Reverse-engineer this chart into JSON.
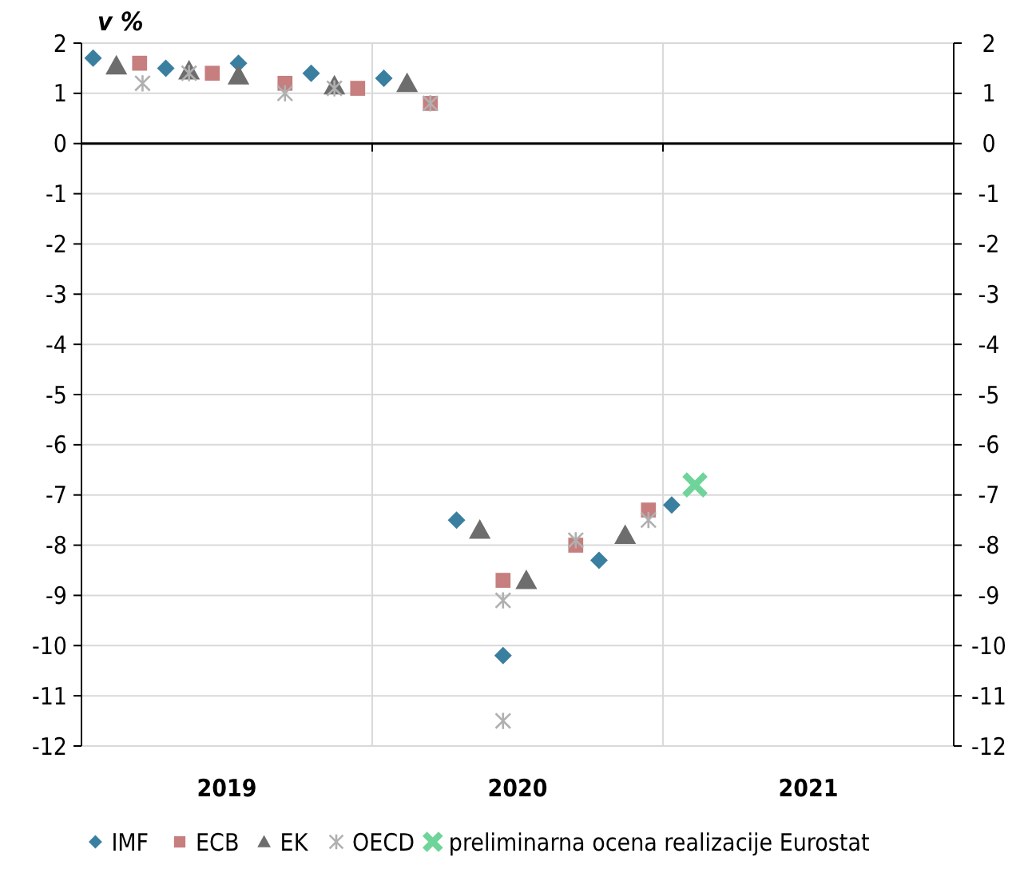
{
  "chart_data": {
    "type": "scatter",
    "ylabel": "v %",
    "xlim": [
      2019,
      2022
    ],
    "ylim": [
      -12,
      2
    ],
    "y2lim": [
      -12,
      2
    ],
    "xticks": [
      {
        "value": 2019,
        "label": null
      },
      {
        "value": 2019.5,
        "label": "2019"
      },
      {
        "value": 2020,
        "label": null
      },
      {
        "value": 2020.5,
        "label": "2020"
      },
      {
        "value": 2021,
        "label": null
      },
      {
        "value": 2021.5,
        "label": "2021"
      },
      {
        "value": 2022,
        "label": null
      }
    ],
    "yticks": [
      -12,
      -11,
      -10,
      -9,
      -8,
      -7,
      -6,
      -5,
      -4,
      -3,
      -2,
      -1,
      0,
      1,
      2
    ],
    "y2ticks": [
      -12,
      -11,
      -10,
      -9,
      -8,
      -7,
      -6,
      -5,
      -4,
      -3,
      -2,
      -1,
      0,
      1,
      2
    ],
    "grid": true,
    "legend": "bottom",
    "series": [
      {
        "name": "IMF",
        "color": "#3a7fa0",
        "marker": "diamond",
        "x": [
          2019.04,
          2019.29,
          2019.54,
          2019.79,
          2020.04,
          2020.29,
          2020.45,
          2020.78,
          2021.03
        ],
        "values": [
          1.7,
          1.5,
          1.6,
          1.4,
          1.3,
          -7.5,
          -10.2,
          -8.3,
          -7.2
        ]
      },
      {
        "name": "ECB",
        "color": "#c67e7e",
        "marker": "square",
        "x": [
          2019.2,
          2019.45,
          2019.7,
          2019.95,
          2020.2,
          2020.45,
          2020.7,
          2020.95
        ],
        "values": [
          1.6,
          1.4,
          1.2,
          1.1,
          0.8,
          -8.7,
          -8.0,
          -7.3
        ]
      },
      {
        "name": "EK",
        "color": "#6d6d6d",
        "marker": "triangle",
        "x": [
          2019.12,
          2019.37,
          2019.54,
          2019.87,
          2020.12,
          2020.37,
          2020.53,
          2020.87
        ],
        "values": [
          1.55,
          1.45,
          1.35,
          1.15,
          1.2,
          -7.7,
          -8.7,
          -7.8
        ]
      },
      {
        "name": "OECD",
        "color": "#b0b0b0",
        "marker": "cross",
        "x": [
          2019.21,
          2019.37,
          2019.7,
          2019.87,
          2020.2,
          2020.45,
          2020.45,
          2020.7,
          2020.95
        ],
        "values": [
          1.2,
          1.4,
          1.0,
          1.1,
          0.8,
          -9.1,
          -11.5,
          -7.9,
          -7.5
        ]
      },
      {
        "name": "preliminarna ocena realizacije Eurostat",
        "color": "#6fd49a",
        "marker": "x",
        "x": [
          2021.11
        ],
        "values": [
          -6.8
        ]
      }
    ]
  }
}
